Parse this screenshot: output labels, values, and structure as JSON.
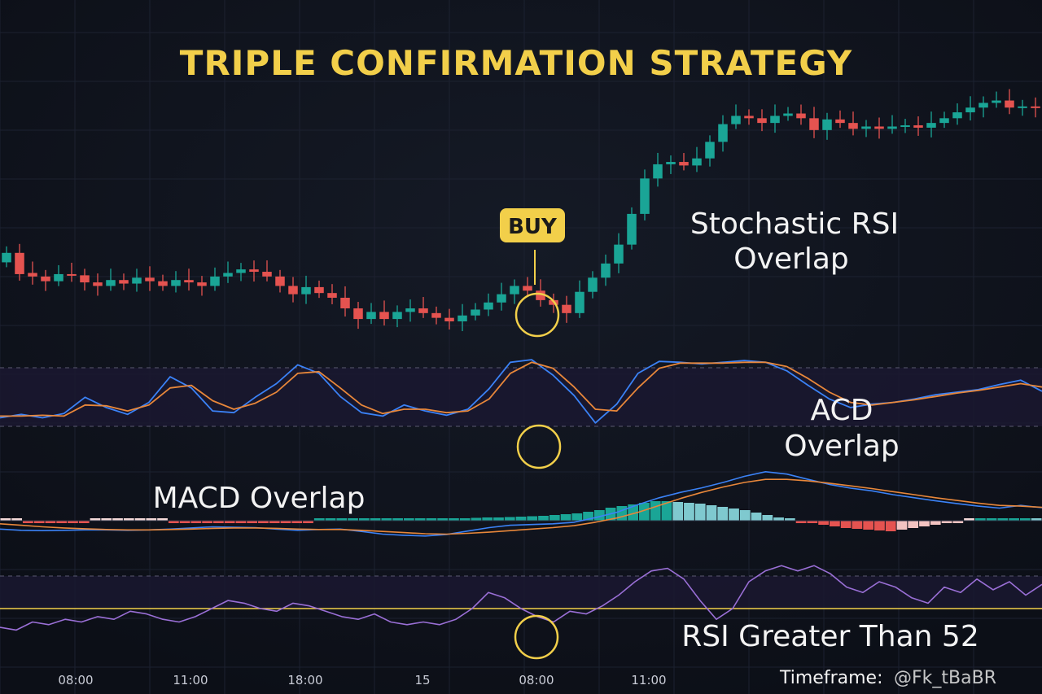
{
  "title": "TRIPLE CONFIRMATION STRATEGY",
  "colors": {
    "background": "#0f121b",
    "title": "#f2cf4a",
    "bull": "#1aa596",
    "bear": "#e55350",
    "stoch_k": "#3b82f6",
    "stoch_d": "#e8873a",
    "macd_line": "#3b82f6",
    "signal_line": "#e8873a",
    "rsi_line": "#9a6fd6",
    "rsi_threshold": "#f2cf4a",
    "highlight_circle": "#f2cf4a",
    "annotation_text": "#f3f3f3"
  },
  "annotations": {
    "buy": "BUY",
    "stoch": [
      "Stochastic RSI",
      "Overlap"
    ],
    "acd": [
      "ACD",
      "Overlap"
    ],
    "macd": "MACD Overlap",
    "rsi": "RSI Greater Than 52",
    "timeframe": "Timeframe:",
    "watermark": "@Fk_tBaBR"
  },
  "x_ticks": [
    "08:00",
    "11:00",
    "18:00",
    "15",
    "08:00",
    "11:00"
  ],
  "chart_data": [
    {
      "type": "candlestick",
      "panel": "price",
      "buy_signal_index": 52,
      "candles": [
        {
          "o": 405,
          "c": 413
        },
        {
          "o": 413,
          "c": 395
        },
        {
          "o": 396,
          "c": 393
        },
        {
          "o": 393,
          "c": 389
        },
        {
          "o": 389,
          "c": 395
        },
        {
          "o": 395,
          "c": 394
        },
        {
          "o": 394,
          "c": 388
        },
        {
          "o": 388,
          "c": 385
        },
        {
          "o": 385,
          "c": 390
        },
        {
          "o": 390,
          "c": 387
        },
        {
          "o": 387,
          "c": 392
        },
        {
          "o": 392,
          "c": 389
        },
        {
          "o": 389,
          "c": 385
        },
        {
          "o": 385,
          "c": 390
        },
        {
          "o": 390,
          "c": 388
        },
        {
          "o": 388,
          "c": 385
        },
        {
          "o": 385,
          "c": 393
        },
        {
          "o": 393,
          "c": 396
        },
        {
          "o": 396,
          "c": 399
        },
        {
          "o": 399,
          "c": 397
        },
        {
          "o": 397,
          "c": 393
        },
        {
          "o": 393,
          "c": 385
        },
        {
          "o": 385,
          "c": 378
        },
        {
          "o": 378,
          "c": 384
        },
        {
          "o": 384,
          "c": 379
        },
        {
          "o": 379,
          "c": 375
        },
        {
          "o": 375,
          "c": 366
        },
        {
          "o": 366,
          "c": 357
        },
        {
          "o": 357,
          "c": 363
        },
        {
          "o": 363,
          "c": 357
        },
        {
          "o": 357,
          "c": 363
        },
        {
          "o": 363,
          "c": 366
        },
        {
          "o": 366,
          "c": 362
        },
        {
          "o": 362,
          "c": 358
        },
        {
          "o": 358,
          "c": 355
        },
        {
          "o": 355,
          "c": 360
        },
        {
          "o": 360,
          "c": 365
        },
        {
          "o": 365,
          "c": 371
        },
        {
          "o": 371,
          "c": 378
        },
        {
          "o": 378,
          "c": 385
        },
        {
          "o": 385,
          "c": 381
        },
        {
          "o": 381,
          "c": 373
        },
        {
          "o": 373,
          "c": 369
        },
        {
          "o": 369,
          "c": 362
        },
        {
          "o": 362,
          "c": 380
        },
        {
          "o": 380,
          "c": 392
        },
        {
          "o": 392,
          "c": 404
        },
        {
          "o": 404,
          "c": 420
        },
        {
          "o": 420,
          "c": 446
        },
        {
          "o": 446,
          "c": 476
        },
        {
          "o": 476,
          "c": 488
        },
        {
          "o": 488,
          "c": 490
        },
        {
          "o": 490,
          "c": 487
        },
        {
          "o": 487,
          "c": 493
        },
        {
          "o": 493,
          "c": 507
        },
        {
          "o": 507,
          "c": 522
        },
        {
          "o": 522,
          "c": 529
        },
        {
          "o": 529,
          "c": 527
        },
        {
          "o": 527,
          "c": 523
        },
        {
          "o": 523,
          "c": 529
        },
        {
          "o": 529,
          "c": 531
        },
        {
          "o": 531,
          "c": 527
        },
        {
          "o": 527,
          "c": 517
        },
        {
          "o": 517,
          "c": 526
        },
        {
          "o": 526,
          "c": 523
        },
        {
          "o": 523,
          "c": 518
        },
        {
          "o": 518,
          "c": 520
        },
        {
          "o": 520,
          "c": 518
        },
        {
          "o": 518,
          "c": 520
        },
        {
          "o": 520,
          "c": 521
        },
        {
          "o": 521,
          "c": 519
        },
        {
          "o": 519,
          "c": 523
        },
        {
          "o": 523,
          "c": 527
        },
        {
          "o": 527,
          "c": 532
        },
        {
          "o": 532,
          "c": 536
        },
        {
          "o": 536,
          "c": 540
        },
        {
          "o": 540,
          "c": 542
        },
        {
          "o": 542,
          "c": 536
        },
        {
          "o": 536,
          "c": 537
        },
        {
          "o": 537,
          "c": 536
        }
      ]
    },
    {
      "type": "line",
      "panel": "stochastic_rsi",
      "ylim": [
        0,
        100
      ],
      "series": [
        {
          "key": "k",
          "values": [
            30,
            34,
            30,
            35,
            54,
            42,
            34,
            48,
            78,
            65,
            38,
            36,
            54,
            70,
            92,
            82,
            55,
            36,
            32,
            45,
            38,
            33,
            40,
            64,
            95,
            98,
            80,
            56,
            24,
            46,
            82,
            96,
            95,
            93,
            95,
            97,
            95,
            85,
            68,
            52,
            42,
            46,
            48,
            52,
            57,
            60,
            63,
            69,
            74,
            61
          ]
        },
        {
          "key": "d",
          "values": [
            32,
            32,
            33,
            32,
            45,
            44,
            38,
            45,
            65,
            68,
            50,
            40,
            47,
            60,
            82,
            84,
            65,
            45,
            35,
            40,
            40,
            36,
            38,
            52,
            82,
            95,
            88,
            66,
            40,
            38,
            65,
            88,
            94,
            94,
            94,
            95,
            95,
            90,
            76,
            60,
            48,
            45,
            48,
            51,
            55,
            59,
            62,
            66,
            70,
            66
          ]
        }
      ]
    },
    {
      "type": "line",
      "panel": "macd",
      "series": [
        {
          "key": "macd",
          "values": [
            -22,
            -25,
            -26,
            -25,
            -24,
            -24,
            -25,
            -24,
            -22,
            -19,
            -16,
            -17,
            -18,
            -22,
            -25,
            -23,
            -22,
            -28,
            -35,
            -38,
            -40,
            -36,
            -27,
            -18,
            -12,
            -10,
            -8,
            -4,
            8,
            22,
            42,
            60,
            74,
            86,
            100,
            116,
            128,
            122,
            108,
            95,
            85,
            78,
            68,
            60,
            52,
            45,
            38,
            33,
            40,
            34
          ]
        },
        {
          "key": "signal",
          "values": [
            -8,
            -12,
            -16,
            -19,
            -21,
            -23,
            -24,
            -24,
            -23,
            -22,
            -20,
            -19,
            -19,
            -20,
            -22,
            -23,
            -23,
            -25,
            -28,
            -31,
            -34,
            -35,
            -33,
            -30,
            -26,
            -22,
            -18,
            -13,
            -4,
            7,
            22,
            40,
            58,
            74,
            88,
            100,
            108,
            108,
            104,
            98,
            91,
            84,
            76,
            68,
            60,
            53,
            46,
            40,
            38,
            35
          ]
        }
      ],
      "histogram": [
        0,
        0,
        -1,
        -1,
        -1,
        -1,
        -1,
        -1,
        0,
        0,
        0,
        0,
        0,
        0,
        0,
        -1,
        -1,
        -1,
        -1,
        -1,
        -1,
        -1,
        -1,
        -1,
        -1,
        -1,
        -1,
        -1,
        1,
        1,
        1,
        1,
        1,
        1,
        1,
        1,
        2,
        3,
        3,
        4,
        5,
        6,
        7,
        8,
        8,
        9,
        10,
        11,
        12,
        14,
        16,
        18,
        22,
        26,
        32,
        36,
        40,
        44,
        48,
        48,
        46,
        44,
        42,
        38,
        34,
        30,
        26,
        20,
        14,
        8,
        2,
        -3,
        -6,
        -10,
        -14,
        -18,
        -20,
        -22,
        -24,
        -26,
        -22,
        -18,
        -14,
        -10,
        -6,
        -3,
        0,
        2,
        3,
        4,
        4,
        5,
        4
      ]
    },
    {
      "type": "line",
      "panel": "rsi",
      "threshold": 52,
      "ylim": [
        40,
        70
      ],
      "series": [
        {
          "key": "rsi",
          "values": [
            45,
            44,
            47,
            46,
            48,
            47,
            49,
            48,
            51,
            50,
            48,
            47,
            49,
            52,
            55,
            54,
            52,
            51,
            54,
            53,
            51,
            49,
            48,
            50,
            47,
            46,
            47,
            46,
            48,
            52,
            58,
            56,
            52,
            49,
            47,
            51,
            50,
            53,
            57,
            62,
            66,
            67,
            63,
            55,
            48,
            52,
            62,
            66,
            68,
            66,
            68,
            65,
            60,
            58,
            62,
            60,
            56,
            54,
            60,
            58,
            63,
            59,
            62,
            57,
            61
          ]
        }
      ]
    }
  ]
}
